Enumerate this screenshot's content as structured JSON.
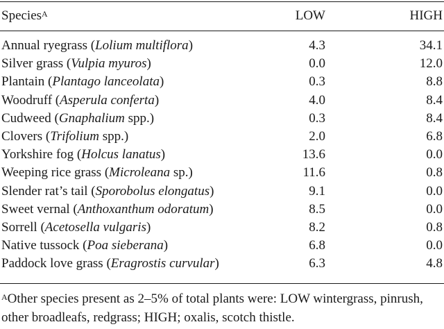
{
  "table": {
    "columns": {
      "species": "Species",
      "species_note_mark": "A",
      "low": "LOW",
      "high": "HIGH"
    },
    "rows": [
      {
        "common": "Annual ryegrass (",
        "latin": "Lolium multiflora",
        "suffix": ")",
        "low": "4.3",
        "high": "34.1"
      },
      {
        "common": "Silver grass (",
        "latin": "Vulpia myuros",
        "suffix": ")",
        "low": "0.0",
        "high": "12.0"
      },
      {
        "common": "Plantain (",
        "latin": "Plantago lanceolata",
        "suffix": ")",
        "low": "0.3",
        "high": "8.8"
      },
      {
        "common": "Woodruff (",
        "latin": "Asperula conferta",
        "suffix": ")",
        "low": "4.0",
        "high": "8.4"
      },
      {
        "common": "Cudweed (",
        "latin": "Gnaphalium",
        "suffix": " spp.)",
        "low": "0.3",
        "high": "8.4"
      },
      {
        "common": "Clovers (",
        "latin": "Trifolium",
        "suffix": " spp.)",
        "low": "2.0",
        "high": "6.8"
      },
      {
        "common": "Yorkshire fog (",
        "latin": "Holcus lanatus",
        "suffix": ")",
        "low": "13.6",
        "high": "0.0"
      },
      {
        "common": "Weeping rice grass (",
        "latin": "Microleana",
        "suffix": " sp.)",
        "low": "11.6",
        "high": "0.8"
      },
      {
        "common": "Slender rat’s tail (",
        "latin": "Sporobolus elongatus",
        "suffix": ")",
        "low": "9.1",
        "high": "0.0"
      },
      {
        "common": "Sweet vernal (",
        "latin": "Anthoxanthum odoratum",
        "suffix": ")",
        "low": "8.5",
        "high": "0.0"
      },
      {
        "common": "Sorrell (",
        "latin": "Acetosella vulgaris",
        "suffix": ")",
        "low": "8.2",
        "high": "0.8"
      },
      {
        "common": "Native tussock (",
        "latin": "Poa sieberana",
        "suffix": ")",
        "low": "6.8",
        "high": "0.0"
      },
      {
        "common": "Paddock love grass (",
        "latin": "Eragrostis curvular",
        "suffix": ")",
        "low": "6.3",
        "high": "4.8"
      }
    ]
  },
  "footnote": {
    "mark": "A",
    "text": "Other species present as 2–5% of total plants were: LOW wintergrass, pinrush, other broadleafs, redgrass; HIGH; oxalis, scotch thistle."
  }
}
